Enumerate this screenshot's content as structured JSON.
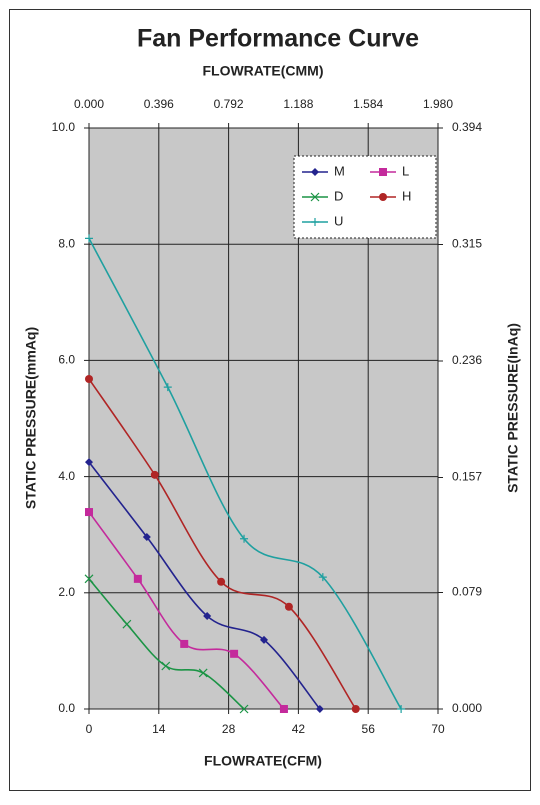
{
  "chart_data": {
    "type": "line",
    "title": "Fan Performance Curve",
    "xlabel": "FLOWRATE(CFM)",
    "x2label": "FLOWRATE(CMM)",
    "ylabel": "STATIC PRESSURE(mmAq)",
    "y2label": "STATIC PRESSURE(InAq)",
    "xlim": [
      0,
      70
    ],
    "xticks": [
      0,
      14,
      28,
      42,
      56,
      70
    ],
    "x2lim": [
      0,
      1.98
    ],
    "x2ticks": [
      {
        "value": 0,
        "label": "0.000"
      },
      {
        "value": 0.396,
        "label": "0.396"
      },
      {
        "value": 0.792,
        "label": "0.792"
      },
      {
        "value": 1.188,
        "label": "1.188"
      },
      {
        "value": 1.584,
        "label": "1.584"
      },
      {
        "value": 1.98,
        "label": "1.980"
      }
    ],
    "ylim": [
      0,
      10
    ],
    "yticks": [
      {
        "value": 0,
        "label": "0.0"
      },
      {
        "value": 2,
        "label": "2.0"
      },
      {
        "value": 4,
        "label": "4.0"
      },
      {
        "value": 6,
        "label": "6.0"
      },
      {
        "value": 8,
        "label": "8.0"
      },
      {
        "value": 10,
        "label": "10.0"
      }
    ],
    "y2lim": [
      0,
      0.394
    ],
    "y2ticks": [
      {
        "value": 0,
        "label": "0.000"
      },
      {
        "value": 0.079,
        "label": "0.079"
      },
      {
        "value": 0.157,
        "label": "0.157"
      },
      {
        "value": 0.236,
        "label": "0.236"
      },
      {
        "value": 0.315,
        "label": "0.315"
      },
      {
        "value": 0.394,
        "label": "0.394"
      }
    ],
    "grid": true,
    "legend": "upper right",
    "series": [
      {
        "name": "M",
        "color": "#23238e",
        "marker": "diamond",
        "x": [
          0,
          11.6,
          23.7,
          35.1,
          46.3
        ],
        "values": [
          4.25,
          2.96,
          1.6,
          1.19,
          0
        ]
      },
      {
        "name": "L",
        "color": "#c42a9c",
        "marker": "square",
        "x": [
          0,
          9.8,
          19.1,
          29.1,
          39.1
        ],
        "values": [
          3.39,
          2.24,
          1.12,
          0.95,
          0
        ]
      },
      {
        "name": "D",
        "color": "#1b9445",
        "marker": "x",
        "x": [
          0,
          7.6,
          15.4,
          22.9,
          31.1
        ],
        "values": [
          2.24,
          1.46,
          0.74,
          0.62,
          0
        ]
      },
      {
        "name": "H",
        "color": "#b02525",
        "marker": "circle",
        "x": [
          0,
          13.2,
          26.5,
          40.1,
          53.5
        ],
        "values": [
          5.68,
          4.03,
          2.19,
          1.76,
          0
        ]
      },
      {
        "name": "U",
        "color": "#1fa0a0",
        "marker": "plus",
        "x": [
          0,
          15.8,
          31.1,
          46.9,
          62.6
        ],
        "values": [
          8.1,
          5.54,
          2.93,
          2.27,
          0
        ]
      }
    ]
  }
}
